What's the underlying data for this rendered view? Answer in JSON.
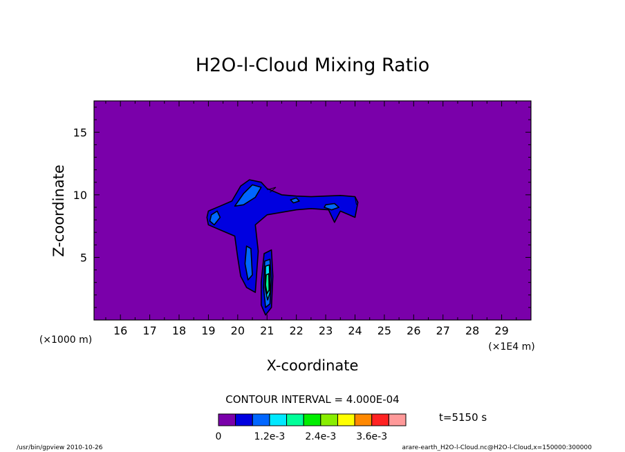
{
  "chart_data": {
    "type": "contour",
    "title": "H2O-l-Cloud Mixing Ratio",
    "xlabel": "X-coordinate",
    "ylabel": "Z-coordinate",
    "x_unit_note": "(×1E4 m)",
    "y_unit_note": "(×1000 m)",
    "xlim": [
      15.1,
      30.0
    ],
    "ylim": [
      0.0,
      17.5
    ],
    "x_ticks": [
      16,
      17,
      18,
      19,
      20,
      21,
      22,
      23,
      24,
      25,
      26,
      27,
      28,
      29
    ],
    "y_ticks": [
      5,
      10,
      15
    ],
    "contour_interval_text": "CONTOUR INTERVAL = 4.000E-04",
    "time_text": "t=5150 s",
    "colorbar": {
      "colors": [
        "#7a00aa",
        "#0000e0",
        "#0066ff",
        "#00e8ff",
        "#00ff99",
        "#00ee00",
        "#88ee00",
        "#ffff00",
        "#ff8800",
        "#ff2222",
        "#ff9999"
      ],
      "labels": [
        "0",
        "1.2e-3",
        "2.4e-3",
        "3.6e-3"
      ],
      "label_values": [
        0,
        0.0012,
        0.0024,
        0.0036
      ]
    },
    "regions": [
      {
        "level": 1,
        "points": [
          [
            19.0,
            8.7
          ],
          [
            19.4,
            9.1
          ],
          [
            19.8,
            9.5
          ],
          [
            20.1,
            10.7
          ],
          [
            20.4,
            11.2
          ],
          [
            20.8,
            11.0
          ],
          [
            21.0,
            10.5
          ],
          [
            21.5,
            10.0
          ],
          [
            22.0,
            9.9
          ],
          [
            22.5,
            9.85
          ],
          [
            23.0,
            9.9
          ],
          [
            23.5,
            9.95
          ],
          [
            24.0,
            9.85
          ],
          [
            24.1,
            9.4
          ],
          [
            24.0,
            8.2
          ],
          [
            23.7,
            8.5
          ],
          [
            23.5,
            8.7
          ],
          [
            23.3,
            7.8
          ],
          [
            23.1,
            8.8
          ],
          [
            22.5,
            8.9
          ],
          [
            22.0,
            8.8
          ],
          [
            21.5,
            8.6
          ],
          [
            21.0,
            8.4
          ],
          [
            20.6,
            7.6
          ],
          [
            20.7,
            5.5
          ],
          [
            20.6,
            2.2
          ],
          [
            20.3,
            2.6
          ],
          [
            20.1,
            3.5
          ],
          [
            20.0,
            5.0
          ],
          [
            19.9,
            6.7
          ],
          [
            19.4,
            7.2
          ],
          [
            19.0,
            7.6
          ],
          [
            18.95,
            8.2
          ]
        ]
      },
      {
        "level": 1,
        "points": [
          [
            20.9,
            5.3
          ],
          [
            21.15,
            5.6
          ],
          [
            21.2,
            3.5
          ],
          [
            21.15,
            1.0
          ],
          [
            20.95,
            0.4
          ],
          [
            20.8,
            1.2
          ],
          [
            20.8,
            3.0
          ]
        ]
      },
      {
        "level": 2,
        "points": [
          [
            19.9,
            9.1
          ],
          [
            20.2,
            10.1
          ],
          [
            20.5,
            10.8
          ],
          [
            20.8,
            10.6
          ],
          [
            20.6,
            9.8
          ],
          [
            20.2,
            9.2
          ]
        ]
      },
      {
        "level": 2,
        "points": [
          [
            19.1,
            8.4
          ],
          [
            19.3,
            8.7
          ],
          [
            19.4,
            8.2
          ],
          [
            19.2,
            7.6
          ],
          [
            19.05,
            7.9
          ]
        ]
      },
      {
        "level": 2,
        "points": [
          [
            20.3,
            5.9
          ],
          [
            20.45,
            5.7
          ],
          [
            20.5,
            3.6
          ],
          [
            20.35,
            3.2
          ],
          [
            20.25,
            4.5
          ]
        ]
      },
      {
        "level": 2,
        "points": [
          [
            23.0,
            9.2
          ],
          [
            23.3,
            9.3
          ],
          [
            23.45,
            9.0
          ],
          [
            23.2,
            8.8
          ],
          [
            22.95,
            9.0
          ]
        ]
      },
      {
        "level": 2,
        "points": [
          [
            21.8,
            9.6
          ],
          [
            22.0,
            9.75
          ],
          [
            22.1,
            9.5
          ],
          [
            21.9,
            9.35
          ]
        ]
      },
      {
        "level": 2,
        "points": [
          [
            20.92,
            4.7
          ],
          [
            21.1,
            4.85
          ],
          [
            21.14,
            3.2
          ],
          [
            21.1,
            1.3
          ],
          [
            20.95,
            1.0
          ],
          [
            20.88,
            2.6
          ]
        ]
      },
      {
        "level": 3,
        "points": [
          [
            20.95,
            4.3
          ],
          [
            21.08,
            4.4
          ],
          [
            21.1,
            2.2
          ],
          [
            21.02,
            1.6
          ],
          [
            20.93,
            2.6
          ]
        ]
      },
      {
        "level": 4,
        "points": [
          [
            20.97,
            3.6
          ],
          [
            21.06,
            3.7
          ],
          [
            21.07,
            2.4
          ],
          [
            21.0,
            2.1
          ],
          [
            20.95,
            2.8
          ]
        ]
      }
    ],
    "thin_lines": [
      {
        "points": [
          [
            21.0,
            10.4
          ],
          [
            21.3,
            10.6
          ],
          [
            21.1,
            10.2
          ]
        ]
      },
      {
        "points": [
          [
            24.0,
            9.8
          ],
          [
            24.05,
            9.2
          ]
        ]
      }
    ]
  },
  "footer": {
    "left": "/usr/bin/gpview   2010-10-26",
    "right": "arare-earth_H2O-l-Cloud.nc@H2O-l-Cloud,x=150000:300000"
  }
}
